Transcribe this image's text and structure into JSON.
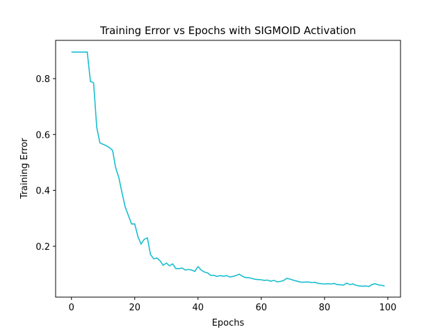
{
  "chart_data": {
    "type": "line",
    "title": "Training Error vs Epochs with SIGMOID Activation",
    "xlabel": "Epochs",
    "ylabel": "Training Error",
    "xlim": [
      -5,
      104
    ],
    "ylim": [
      0.018,
      0.937
    ],
    "xticks": [
      0,
      20,
      40,
      60,
      80,
      100
    ],
    "yticks": [
      0.2,
      0.4,
      0.6,
      0.8
    ],
    "grid": false,
    "line_color": "#17becf",
    "series": [
      {
        "x": [
          0,
          1,
          2,
          3,
          4,
          5,
          6,
          7,
          8,
          9,
          10,
          11,
          12,
          13,
          14,
          15,
          16,
          17,
          18,
          19,
          20,
          21,
          22,
          23,
          24,
          25,
          26,
          27,
          28,
          29,
          30,
          31,
          32,
          33,
          34,
          35,
          36,
          37,
          38,
          39,
          40,
          41,
          42,
          43,
          44,
          45,
          46,
          47,
          48,
          49,
          50,
          51,
          52,
          53,
          54,
          55,
          56,
          57,
          58,
          59,
          60,
          61,
          62,
          63,
          64,
          65,
          66,
          67,
          68,
          69,
          70,
          71,
          72,
          73,
          74,
          75,
          76,
          77,
          78,
          79,
          80,
          81,
          82,
          83,
          84,
          85,
          86,
          87,
          88,
          89,
          90,
          91,
          92,
          93,
          94,
          95,
          96,
          97,
          98,
          99
        ],
        "values": [
          0.895,
          0.895,
          0.895,
          0.895,
          0.895,
          0.895,
          0.79,
          0.785,
          0.625,
          0.57,
          0.565,
          0.56,
          0.553,
          0.543,
          0.48,
          0.445,
          0.39,
          0.34,
          0.31,
          0.28,
          0.28,
          0.235,
          0.208,
          0.225,
          0.23,
          0.17,
          0.155,
          0.158,
          0.148,
          0.132,
          0.14,
          0.13,
          0.137,
          0.12,
          0.12,
          0.122,
          0.115,
          0.117,
          0.115,
          0.11,
          0.127,
          0.115,
          0.108,
          0.105,
          0.096,
          0.096,
          0.092,
          0.095,
          0.093,
          0.095,
          0.09,
          0.092,
          0.095,
          0.1,
          0.093,
          0.088,
          0.088,
          0.085,
          0.082,
          0.081,
          0.08,
          0.078,
          0.079,
          0.075,
          0.078,
          0.073,
          0.074,
          0.077,
          0.085,
          0.083,
          0.079,
          0.076,
          0.073,
          0.071,
          0.072,
          0.072,
          0.07,
          0.071,
          0.067,
          0.066,
          0.065,
          0.066,
          0.065,
          0.067,
          0.063,
          0.062,
          0.061,
          0.068,
          0.063,
          0.065,
          0.06,
          0.058,
          0.057,
          0.058,
          0.056,
          0.063,
          0.066,
          0.062,
          0.06,
          0.058
        ]
      }
    ]
  }
}
